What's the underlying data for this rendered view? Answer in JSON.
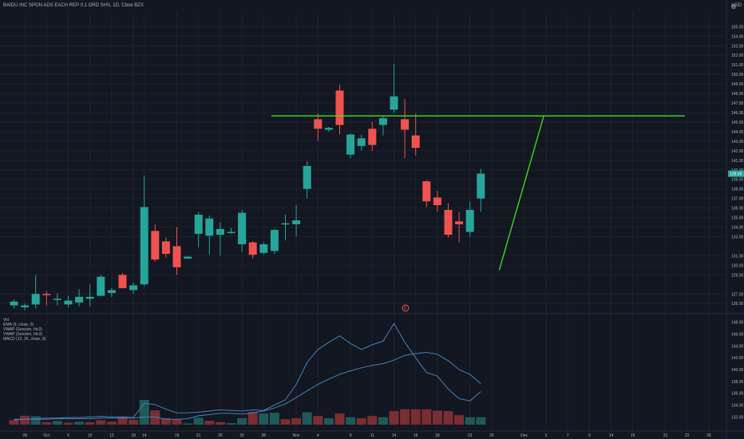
{
  "header": {
    "symbol_line": "BAIDU INC SPON ADS EACH REP 0.1 ORD SHS, 1D, Cboe BZX",
    "currency": "USD"
  },
  "indicators": [
    "Vol",
    "EMA (9, close, 0)",
    "VWAP (Session, hlc3)",
    "VWAP (Session, hlc3)",
    "MACD (12, 26, close, 9)"
  ],
  "earnings_marker": "E",
  "last_price_label": "139.59",
  "colors": {
    "background": "#131722",
    "up": "#26a69a",
    "down": "#ef5350",
    "volume_up": "#1f5a58",
    "volume_down": "#7a2e33",
    "drawing": "#3ce61e",
    "indicator_line": "#4a7fb5",
    "grid": "#1e222d",
    "text": "#b2b5be"
  },
  "chart_data": {
    "type": "candlestick",
    "price_axis": {
      "ylim": [
        125.6,
        156.2
      ],
      "ticks": [
        "126.00",
        "127.00",
        "129.00",
        "130.00",
        "131.00",
        "133.00",
        "134.00",
        "135.00",
        "136.00",
        "137.00",
        "138.00",
        "139.00",
        "140.00",
        "141.00",
        "142.00",
        "143.00",
        "144.00",
        "145.00",
        "146.00",
        "147.00",
        "148.00",
        "149.00",
        "150.00",
        "151.00",
        "152.00",
        "153.00",
        "154.00",
        "155.00"
      ]
    },
    "lower_axis": {
      "ylim": [
        130.7,
        148.5
      ],
      "ticks": [
        "132.00",
        "134.00",
        "136.00",
        "138.00",
        "140.00",
        "142.00",
        "144.00",
        "146.00",
        "148.00"
      ]
    },
    "x_labels": [
      {
        "slot": 1,
        "label": "28"
      },
      {
        "slot": 3,
        "label": "Oct"
      },
      {
        "slot": 5,
        "label": "5"
      },
      {
        "slot": 7,
        "label": "10"
      },
      {
        "slot": 9,
        "label": "12"
      },
      {
        "slot": 11,
        "label": "18"
      },
      {
        "slot": 12,
        "label": "14"
      },
      {
        "slot": 15,
        "label": "19"
      },
      {
        "slot": 17,
        "label": "21"
      },
      {
        "slot": 19,
        "label": "26"
      },
      {
        "slot": 21,
        "label": "25"
      },
      {
        "slot": 23,
        "label": "28"
      },
      {
        "slot": 26,
        "label": "Nov"
      },
      {
        "slot": 28,
        "label": "4"
      },
      {
        "slot": 31,
        "label": "9"
      },
      {
        "slot": 33,
        "label": "11"
      },
      {
        "slot": 35,
        "label": "14"
      },
      {
        "slot": 37,
        "label": "16"
      },
      {
        "slot": 39,
        "label": "18"
      },
      {
        "slot": 42,
        "label": "23"
      },
      {
        "slot": 44,
        "label": "25"
      },
      {
        "slot": 47,
        "label": "Dec"
      },
      {
        "slot": 49,
        "label": "3"
      },
      {
        "slot": 51,
        "label": "7"
      },
      {
        "slot": 53,
        "label": "9"
      },
      {
        "slot": 55,
        "label": "14"
      },
      {
        "slot": 57,
        "label": "16"
      },
      {
        "slot": 60,
        "label": "21"
      },
      {
        "slot": 62,
        "label": "22"
      },
      {
        "slot": 64,
        "label": "28"
      }
    ],
    "candles": [
      {
        "o": 125.8,
        "h": 126.4,
        "l": 125.5,
        "c": 126.2
      },
      {
        "o": 125.6,
        "h": 126.0,
        "l": 125.3,
        "c": 125.8
      },
      {
        "o": 125.9,
        "h": 129.0,
        "l": 125.5,
        "c": 127.0
      },
      {
        "o": 127.0,
        "h": 127.3,
        "l": 125.8,
        "c": 126.9
      },
      {
        "o": 126.5,
        "h": 127.1,
        "l": 125.8,
        "c": 126.5
      },
      {
        "o": 125.9,
        "h": 126.8,
        "l": 125.6,
        "c": 126.3
      },
      {
        "o": 126.1,
        "h": 127.5,
        "l": 125.7,
        "c": 126.7
      },
      {
        "o": 126.5,
        "h": 128.0,
        "l": 125.7,
        "c": 126.7
      },
      {
        "o": 126.8,
        "h": 129.0,
        "l": 126.8,
        "c": 128.8
      },
      {
        "o": 127.1,
        "h": 127.6,
        "l": 126.7,
        "c": 127.4
      },
      {
        "o": 129.0,
        "h": 129.2,
        "l": 127.6,
        "c": 127.6
      },
      {
        "o": 127.4,
        "h": 128.2,
        "l": 127.0,
        "c": 127.9
      },
      {
        "o": 128.0,
        "h": 139.4,
        "l": 127.8,
        "c": 136.1
      },
      {
        "o": 133.6,
        "h": 134.3,
        "l": 130.4,
        "c": 130.6
      },
      {
        "o": 132.5,
        "h": 132.9,
        "l": 130.8,
        "c": 131.2
      },
      {
        "o": 132.0,
        "h": 134.0,
        "l": 129.0,
        "c": 129.8
      },
      {
        "o": 130.7,
        "h": 131.0,
        "l": 130.7,
        "c": 130.9
      },
      {
        "o": 133.3,
        "h": 135.6,
        "l": 131.9,
        "c": 135.3
      },
      {
        "o": 133.1,
        "h": 135.2,
        "l": 131.1,
        "c": 134.9
      },
      {
        "o": 133.2,
        "h": 134.5,
        "l": 131.0,
        "c": 133.8
      },
      {
        "o": 133.4,
        "h": 133.9,
        "l": 133.3,
        "c": 133.5
      },
      {
        "o": 132.2,
        "h": 135.8,
        "l": 131.4,
        "c": 135.5
      },
      {
        "o": 132.4,
        "h": 132.5,
        "l": 130.7,
        "c": 131.1
      },
      {
        "o": 131.3,
        "h": 132.4,
        "l": 131.1,
        "c": 132.2
      },
      {
        "o": 131.5,
        "h": 133.8,
        "l": 131.2,
        "c": 133.7
      },
      {
        "o": 134.4,
        "h": 135.3,
        "l": 132.6,
        "c": 134.4
      },
      {
        "o": 134.3,
        "h": 136.3,
        "l": 133.0,
        "c": 134.7
      },
      {
        "o": 138.0,
        "h": 140.9,
        "l": 137.0,
        "c": 140.4
      },
      {
        "o": 145.3,
        "h": 145.9,
        "l": 143.0,
        "c": 144.3
      },
      {
        "o": 144.2,
        "h": 144.5,
        "l": 144.0,
        "c": 144.4
      },
      {
        "o": 148.3,
        "h": 148.9,
        "l": 143.7,
        "c": 144.7
      },
      {
        "o": 141.6,
        "h": 143.8,
        "l": 141.2,
        "c": 143.7
      },
      {
        "o": 142.5,
        "h": 143.7,
        "l": 142.0,
        "c": 143.3
      },
      {
        "o": 144.3,
        "h": 145.0,
        "l": 142.0,
        "c": 142.6
      },
      {
        "o": 144.7,
        "h": 145.6,
        "l": 143.6,
        "c": 145.4
      },
      {
        "o": 146.3,
        "h": 151.1,
        "l": 146.0,
        "c": 147.7
      },
      {
        "o": 145.3,
        "h": 147.4,
        "l": 141.2,
        "c": 144.2
      },
      {
        "o": 143.6,
        "h": 145.9,
        "l": 141.5,
        "c": 142.3
      },
      {
        "o": 138.8,
        "h": 138.9,
        "l": 136.1,
        "c": 136.7
      },
      {
        "o": 137.1,
        "h": 137.8,
        "l": 135.6,
        "c": 136.3
      },
      {
        "o": 135.8,
        "h": 136.5,
        "l": 132.9,
        "c": 133.2
      },
      {
        "o": 134.6,
        "h": 135.6,
        "l": 132.4,
        "c": 134.3
      },
      {
        "o": 133.5,
        "h": 136.7,
        "l": 133.0,
        "c": 135.8
      },
      {
        "o": 137.0,
        "h": 140.1,
        "l": 135.6,
        "c": 139.6
      }
    ],
    "volumes": [
      {
        "v": 0.18,
        "up": false
      },
      {
        "v": 0.36,
        "up": false
      },
      {
        "v": 0.34,
        "up": true
      },
      {
        "v": 0.1,
        "up": false
      },
      {
        "v": 0.15,
        "up": true
      },
      {
        "v": 0.08,
        "up": false
      },
      {
        "v": 0.12,
        "up": true
      },
      {
        "v": 0.1,
        "up": false
      },
      {
        "v": 0.18,
        "up": false
      },
      {
        "v": 0.12,
        "up": false
      },
      {
        "v": 0.33,
        "up": false
      },
      {
        "v": 0.2,
        "up": false
      },
      {
        "v": 1.0,
        "up": true
      },
      {
        "v": 0.58,
        "up": false
      },
      {
        "v": 0.26,
        "up": false
      },
      {
        "v": 0.22,
        "up": false
      },
      {
        "v": 0.05,
        "up": true
      },
      {
        "v": 0.28,
        "up": true
      },
      {
        "v": 0.16,
        "up": false
      },
      {
        "v": 0.1,
        "up": false
      },
      {
        "v": 0.06,
        "up": true
      },
      {
        "v": 0.26,
        "up": true
      },
      {
        "v": 0.52,
        "up": false
      },
      {
        "v": 0.45,
        "up": true
      },
      {
        "v": 0.48,
        "up": true
      },
      {
        "v": 0.22,
        "up": false
      },
      {
        "v": 0.26,
        "up": false
      },
      {
        "v": 0.5,
        "up": true
      },
      {
        "v": 0.35,
        "up": false
      },
      {
        "v": 0.26,
        "up": true
      },
      {
        "v": 0.45,
        "up": false
      },
      {
        "v": 0.3,
        "up": true
      },
      {
        "v": 0.26,
        "up": false
      },
      {
        "v": 0.35,
        "up": false
      },
      {
        "v": 0.3,
        "up": true
      },
      {
        "v": 0.55,
        "up": false
      },
      {
        "v": 0.62,
        "up": false
      },
      {
        "v": 0.62,
        "up": false
      },
      {
        "v": 0.62,
        "up": false
      },
      {
        "v": 0.57,
        "up": false
      },
      {
        "v": 0.55,
        "up": false
      },
      {
        "v": 0.38,
        "up": false
      },
      {
        "v": 0.3,
        "up": true
      },
      {
        "v": 0.3,
        "up": true
      }
    ],
    "vwap_session": [
      131.5,
      131.6,
      131.6,
      131.6,
      131.7,
      131.7,
      131.7,
      131.7,
      131.8,
      131.8,
      131.8,
      131.8,
      132.0,
      132.0,
      131.6,
      131.6,
      131.7,
      132.2,
      132.4,
      132.6,
      132.6,
      132.5,
      132.7,
      133.0,
      133.5,
      134.2,
      135.3,
      136.4,
      137.5,
      138.4,
      139.2,
      139.8,
      140.3,
      140.7,
      141.0,
      141.6,
      142.4,
      142.7,
      142.9,
      142.6,
      141.5,
      140.0,
      139.2,
      137.6
    ],
    "ema_9": [
      131.6,
      131.6,
      131.7,
      131.8,
      131.8,
      131.9,
      131.9,
      132.0,
      132.1,
      132.0,
      132.0,
      131.9,
      134.3,
      134.1,
      133.3,
      132.7,
      132.7,
      132.8,
      133.0,
      133.2,
      133.1,
      133.0,
      133.2,
      133.1,
      134.0,
      134.9,
      137.5,
      141.2,
      143.4,
      144.6,
      145.7,
      144.4,
      143.4,
      144.2,
      144.8,
      147.8,
      144.6,
      142.0,
      139.5,
      138.9,
      136.7,
      135.1,
      134.7,
      136.3
    ],
    "drawings": {
      "horizontal_level": 145.65,
      "trend_line": {
        "from": {
          "slot": 44.7,
          "price": 129.5
        },
        "to": {
          "slot": 48.8,
          "price": 145.65
        }
      }
    }
  }
}
